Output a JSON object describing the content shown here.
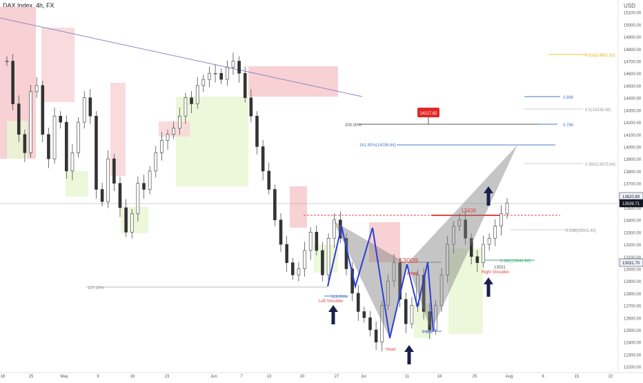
{
  "header": {
    "title": "DAX Index, 4h, FX"
  },
  "currency": "USD",
  "chart_data": {
    "type": "candlestick",
    "ylim": [
      12150,
      15200
    ],
    "y_ticks": [
      12200,
      12300,
      12400,
      12500,
      12600,
      12700,
      12800,
      12900,
      13000,
      13100,
      13200,
      13300,
      13400,
      13500,
      13600,
      13700,
      13800,
      13900,
      14000,
      14100,
      14200,
      14300,
      14400,
      14500,
      14600,
      14700,
      14800,
      14900,
      15000,
      15100
    ],
    "x_ticks": [
      "18",
      "25",
      "May",
      "9",
      "16",
      "23",
      "Jun",
      "7",
      "13",
      "20",
      "27",
      "Jul",
      "11",
      "18",
      "25",
      "Aug",
      "8",
      "15",
      "22"
    ],
    "price_badges": [
      {
        "value": "13620.89"
      },
      {
        "value": "13539.71"
      },
      {
        "value": "13031.70"
      }
    ],
    "series": [
      {
        "name": "",
        "close": [
          14700,
          14350,
          14100,
          13950,
          14450,
          14500,
          14100,
          13900,
          14250,
          14200,
          13800,
          13950,
          14200,
          14400,
          14250,
          13650,
          13550,
          13900,
          13700,
          13500,
          13300,
          13450,
          13700,
          13650,
          13800,
          13950,
          14050,
          14100,
          14150,
          14250,
          14400,
          14350,
          14500,
          14550,
          14600,
          14600,
          14550,
          14650,
          14700,
          14600,
          14400,
          14250,
          14000,
          13800,
          13650,
          13400,
          13200,
          13050,
          12950,
          13000,
          13150,
          13300,
          13150,
          12950,
          13250,
          13400,
          13250,
          13000,
          12800,
          12650,
          12600,
          12500,
          12400,
          12700,
          12900,
          13050,
          12750,
          12550,
          12700,
          12950,
          12650,
          12500,
          12700,
          12950,
          13200,
          13350,
          13400,
          13250,
          13100,
          13050,
          13200,
          13250,
          13350,
          13450,
          13539
        ]
      }
    ],
    "fib_levels": [
      {
        "label": "0.618(14802.62)",
        "value": 14802
      },
      {
        "label": "0.886",
        "value": 14450
      },
      {
        "label": "0.5(14338.08)",
        "value": 14338
      },
      {
        "label": "0.786",
        "value": 14217
      },
      {
        "label": "200.00%",
        "value": 14217
      },
      {
        "label": "161.80%(14036.64)",
        "value": 14036
      },
      {
        "label": "0.382(13875.64)",
        "value": 13875
      },
      {
        "label": "0.236(13305.45)",
        "value": 13305
      },
      {
        "label": "0.382(13040.90)",
        "value": 13040
      },
      {
        "label": "127.20%",
        "value": 12840
      },
      {
        "label": "113.00%",
        "value": 12750
      },
      {
        "label": "0.786",
        "value": 12950
      },
      {
        "label": "0.886",
        "value": 12450
      }
    ],
    "annotations": [
      {
        "label": "14217.82",
        "kind": "price-tag"
      },
      {
        "label": "13436",
        "kind": "level"
      },
      {
        "label": "13009",
        "kind": "level"
      },
      {
        "label": "13031",
        "kind": "level"
      },
      {
        "label": "Left Shoulder",
        "kind": "pattern"
      },
      {
        "label": "Head",
        "kind": "pattern"
      },
      {
        "label": "Right Shoulder",
        "kind": "pattern"
      }
    ]
  }
}
